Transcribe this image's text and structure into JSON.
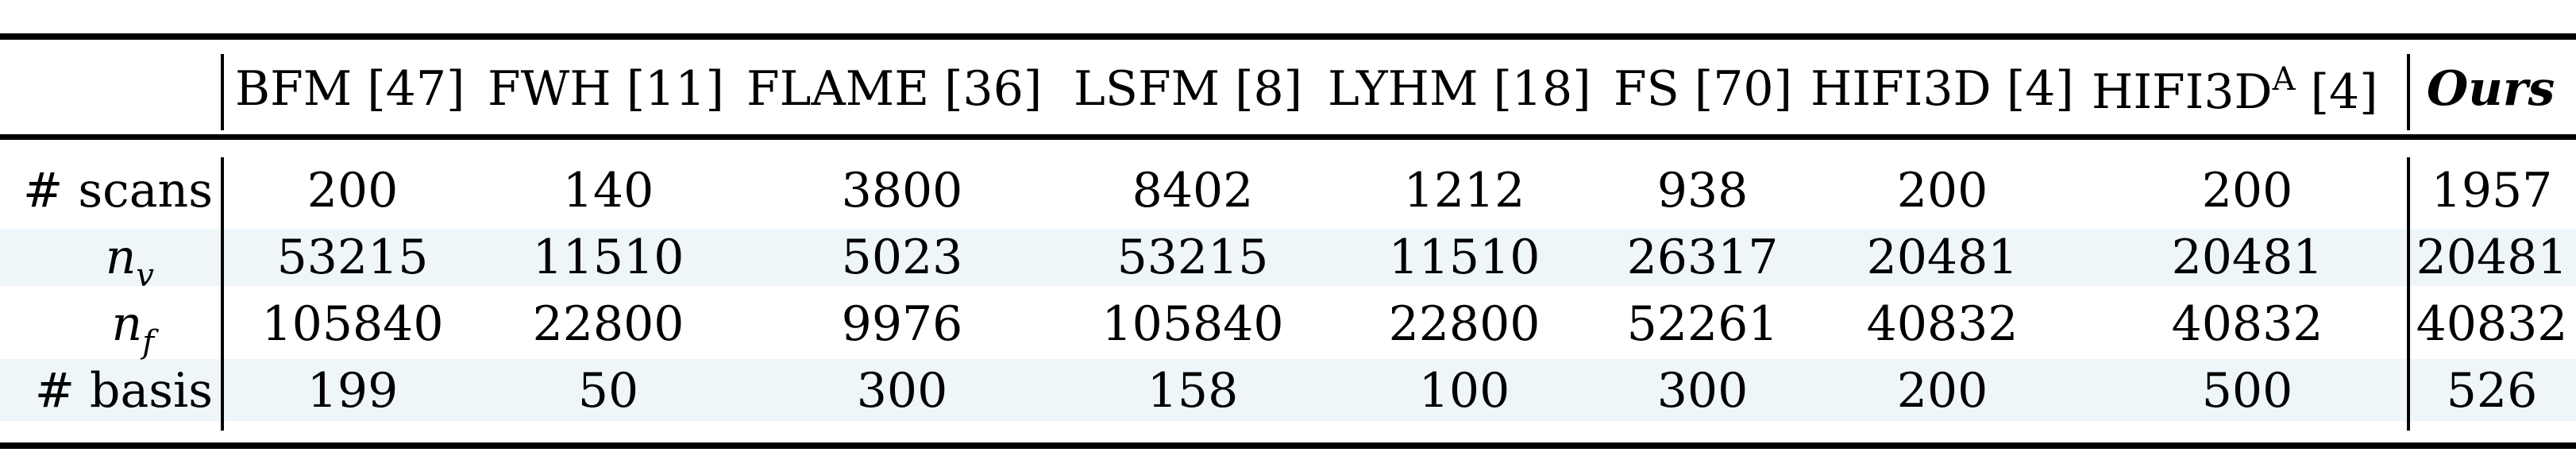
{
  "table": {
    "columns": [
      {
        "label": "BFM [47]"
      },
      {
        "label": "FWH [11]"
      },
      {
        "label": "FLAME [36]"
      },
      {
        "label": "LSFM [8]"
      },
      {
        "label": "LYHM [18]"
      },
      {
        "label": "FS [70]"
      },
      {
        "label": "HIFI3D [4]"
      },
      {
        "label_main": "HIFI3D",
        "label_sup": "A",
        "label_tail": " [4]"
      },
      {
        "label": "Ours"
      }
    ],
    "rows": [
      {
        "label": "# scans",
        "values": [
          "200",
          "140",
          "3800",
          "8402",
          "1212",
          "938",
          "200",
          "200",
          "1957"
        ]
      },
      {
        "label_main": "n",
        "label_sub": "v",
        "values": [
          "53215",
          "11510",
          "5023",
          "53215",
          "11510",
          "26317",
          "20481",
          "20481",
          "20481"
        ]
      },
      {
        "label_main": "n",
        "label_sub": "f",
        "values": [
          "105840",
          "22800",
          "9976",
          "105840",
          "22800",
          "52261",
          "40832",
          "40832",
          "40832"
        ]
      },
      {
        "label": "# basis",
        "values": [
          "199",
          "50",
          "300",
          "158",
          "100",
          "300",
          "200",
          "500",
          "526"
        ]
      }
    ]
  }
}
